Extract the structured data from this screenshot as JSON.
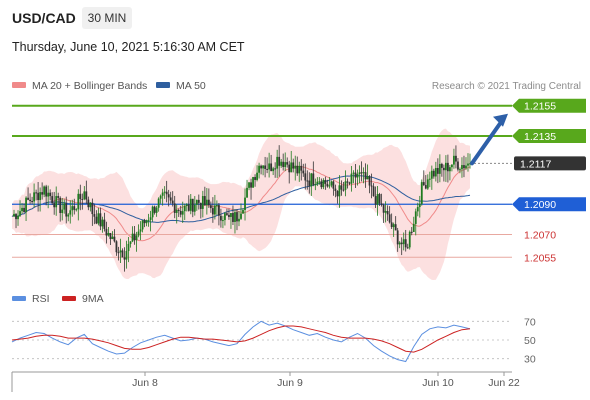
{
  "header": {
    "symbol": "USD/CAD",
    "timeframe": "30 MIN",
    "timestamp": "Thursday, June 10, 2021 5:16:30 AM CET"
  },
  "chart_data": [
    {
      "type": "line",
      "panel": "price",
      "legend": [
        {
          "name": "MA 20 + Bollinger Bands",
          "color": "#f08a8a"
        },
        {
          "name": "MA 50",
          "color": "#2f5f9f"
        }
      ],
      "watermark": "Research © 2021 Trading Central",
      "ylim": [
        1.204,
        1.217
      ],
      "grid": false,
      "x_ticks": [
        "Jun 8",
        "Jun 9",
        "Jun 10",
        "Jun 22"
      ],
      "levels": [
        {
          "value": 1.2155,
          "label": "1.2155",
          "color": "#58a81c",
          "style": "target"
        },
        {
          "value": 1.2135,
          "label": "1.2135",
          "color": "#58a81c",
          "style": "box"
        },
        {
          "value": 1.2117,
          "label": "1.2117",
          "color": "#333333",
          "style": "current"
        },
        {
          "value": 1.209,
          "label": "1.2090",
          "color": "#1f5fd6",
          "style": "box"
        },
        {
          "value": 1.207,
          "label": "1.2070",
          "color": "#cc3333",
          "style": "text"
        },
        {
          "value": 1.2055,
          "label": "1.2055",
          "color": "#cc3333",
          "style": "text"
        }
      ],
      "price_path": [
        1.2082,
        1.2086,
        1.2092,
        1.2096,
        1.21,
        1.2094,
        1.2088,
        1.2084,
        1.209,
        1.2098,
        1.2085,
        1.2078,
        1.207,
        1.2062,
        1.2058,
        1.2066,
        1.2074,
        1.2082,
        1.209,
        1.2094,
        1.209,
        1.2086,
        1.2088,
        1.2092,
        1.209,
        1.2087,
        1.2084,
        1.208,
        1.2082,
        1.2094,
        1.2108,
        1.2118,
        1.2114,
        1.212,
        1.2118,
        1.2114,
        1.211,
        1.2106,
        1.2108,
        1.2104,
        1.21,
        1.2098,
        1.2104,
        1.211,
        1.2106,
        1.2096,
        1.2088,
        1.2078,
        1.2068,
        1.206,
        1.208,
        1.21,
        1.211,
        1.2112,
        1.2114,
        1.2118,
        1.2116,
        1.2117
      ]
    },
    {
      "type": "line",
      "panel": "oscillator",
      "legend": [
        {
          "name": "RSI",
          "color": "#5b8fe0"
        },
        {
          "name": "9MA",
          "color": "#cc2222"
        }
      ],
      "ylim": [
        20,
        80
      ],
      "y_ticks": [
        70,
        50,
        30
      ],
      "rsi": [
        48,
        52,
        55,
        58,
        57,
        52,
        48,
        45,
        52,
        56,
        46,
        42,
        38,
        35,
        36,
        42,
        47,
        50,
        53,
        55,
        52,
        49,
        50,
        52,
        51,
        48,
        46,
        44,
        46,
        56,
        64,
        70,
        66,
        68,
        65,
        61,
        58,
        55,
        57,
        53,
        50,
        48,
        53,
        57,
        52,
        44,
        38,
        33,
        29,
        27,
        43,
        56,
        62,
        64,
        63,
        66,
        64,
        62
      ],
      "ma9": [
        50,
        51,
        52,
        54,
        55,
        55,
        54,
        52,
        52,
        52,
        51,
        49,
        47,
        44,
        41,
        40,
        40,
        42,
        45,
        48,
        51,
        53,
        53,
        52,
        51,
        51,
        50,
        49,
        48,
        49,
        52,
        56,
        60,
        63,
        65,
        65,
        64,
        62,
        60,
        58,
        55,
        53,
        52,
        52,
        52,
        51,
        49,
        46,
        42,
        38,
        37,
        40,
        45,
        50,
        54,
        58,
        61,
        62
      ]
    }
  ]
}
